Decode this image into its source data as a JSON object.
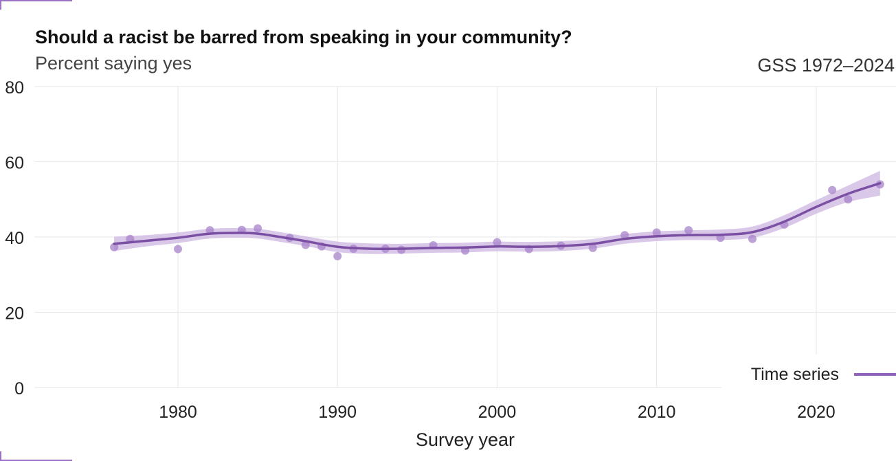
{
  "chart_data": {
    "type": "line",
    "title": "Should a racist be barred from speaking in your community?",
    "subtitle": "Percent saying yes",
    "caption": "GSS 1972–2024",
    "xlabel": "Survey year",
    "ylabel": "",
    "xlim": [
      1971,
      2025
    ],
    "ylim": [
      0,
      80
    ],
    "x_ticks": [
      1980,
      1990,
      2000,
      2010,
      2020
    ],
    "y_ticks": [
      0,
      20,
      40,
      60,
      80
    ],
    "grid": true,
    "legend": {
      "position": "bottom-right",
      "entries": [
        "Time series"
      ]
    },
    "colors": {
      "line": "#7b4fa3",
      "points": "#a783c9",
      "band": "#cdb6e2",
      "accent": "#8e63b8"
    },
    "points": {
      "x": [
        1976,
        1977,
        1980,
        1982,
        1984,
        1985,
        1987,
        1988,
        1989,
        1990,
        1991,
        1993,
        1994,
        1996,
        1998,
        2000,
        2002,
        2004,
        2006,
        2008,
        2010,
        2012,
        2014,
        2016,
        2018,
        2021,
        2022,
        2024
      ],
      "y": [
        37.3,
        39.5,
        36.8,
        41.8,
        41.9,
        42.3,
        39.8,
        37.9,
        37.5,
        34.9,
        36.9,
        36.9,
        36.6,
        37.8,
        36.4,
        38.6,
        36.8,
        37.7,
        37.1,
        40.5,
        41.2,
        41.8,
        39.8,
        39.5,
        43.3,
        52.5,
        50.0,
        54.0
      ]
    },
    "series": [
      {
        "name": "Time series",
        "x": [
          1976,
          1978,
          1980,
          1982,
          1984,
          1985,
          1986,
          1988,
          1990,
          1992,
          1994,
          1996,
          1998,
          2000,
          2002,
          2004,
          2006,
          2008,
          2010,
          2012,
          2014,
          2016,
          2018,
          2020,
          2022,
          2024
        ],
        "y": [
          38.2,
          39.0,
          39.8,
          40.9,
          41.1,
          40.9,
          40.3,
          38.9,
          37.4,
          36.9,
          36.9,
          37.1,
          37.2,
          37.5,
          37.4,
          37.6,
          38.2,
          39.5,
          40.2,
          40.5,
          40.6,
          41.3,
          44.1,
          48.0,
          51.5,
          54.3
        ]
      }
    ],
    "band": {
      "x": [
        1976,
        1978,
        1980,
        1982,
        1984,
        1985,
        1986,
        1988,
        1990,
        1992,
        1994,
        1996,
        1998,
        2000,
        2002,
        2004,
        2006,
        2008,
        2010,
        2012,
        2014,
        2016,
        2018,
        2020,
        2022,
        2024
      ],
      "lower": [
        36.3,
        37.5,
        38.4,
        39.6,
        39.8,
        39.6,
        39.0,
        37.6,
        36.0,
        35.5,
        35.6,
        35.8,
        35.9,
        36.2,
        36.1,
        36.3,
        36.9,
        38.2,
        38.9,
        39.2,
        39.2,
        39.8,
        42.4,
        46.2,
        49.3,
        51.0
      ],
      "upper": [
        40.1,
        40.5,
        41.2,
        42.2,
        42.4,
        42.2,
        41.6,
        40.2,
        38.8,
        38.3,
        38.2,
        38.4,
        38.5,
        38.8,
        38.7,
        38.9,
        39.5,
        40.8,
        41.5,
        41.8,
        42.0,
        42.8,
        45.8,
        49.8,
        53.7,
        57.6
      ]
    }
  }
}
